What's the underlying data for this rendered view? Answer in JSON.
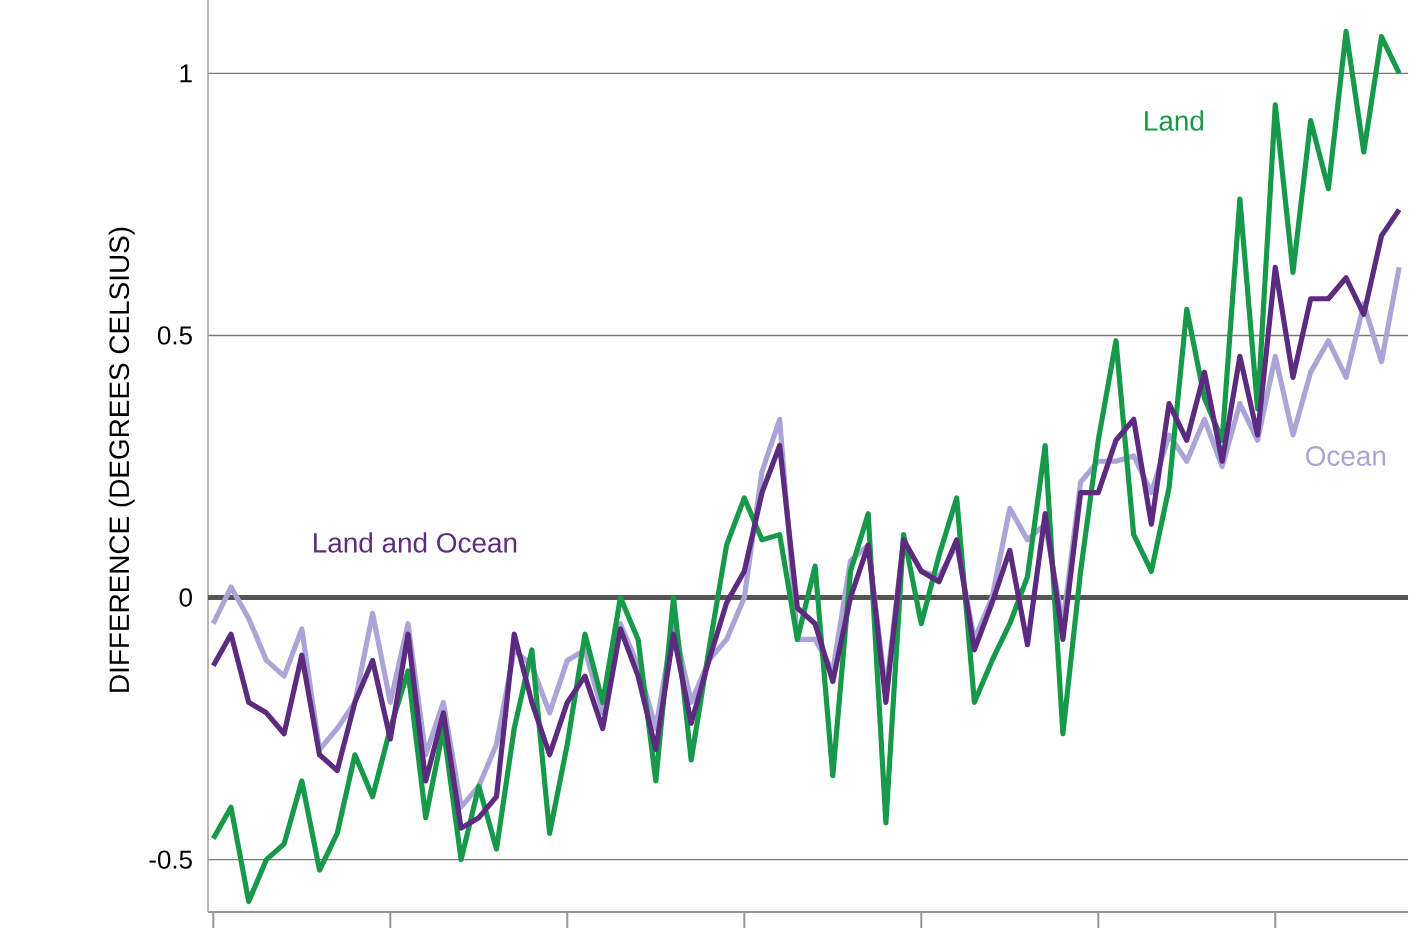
{
  "chart_data": {
    "type": "line",
    "ylabel": "DIFFERENCE (DEGREES CELSIUS)",
    "categories": [
      null,
      null,
      null,
      null,
      null,
      null,
      null,
      null,
      null,
      null,
      null,
      null,
      null,
      null,
      null,
      null,
      null,
      null,
      null,
      null,
      null,
      null,
      null,
      null,
      null,
      null,
      null,
      null,
      null,
      null,
      null,
      null,
      null,
      null,
      null,
      null,
      null,
      null,
      null,
      null,
      null,
      null,
      null,
      null,
      null,
      null,
      null,
      null,
      null,
      null,
      null,
      null,
      null,
      null,
      null,
      null,
      null,
      null,
      null,
      null,
      null,
      null,
      null,
      null,
      null,
      null,
      null,
      null
    ],
    "series": [
      {
        "name": "Ocean",
        "color": "#aaa5d6",
        "values": [
          -0.05,
          0.02,
          -0.04,
          -0.12,
          -0.15,
          -0.06,
          -0.29,
          -0.25,
          -0.2,
          -0.03,
          -0.2,
          -0.05,
          -0.3,
          -0.2,
          -0.4,
          -0.36,
          -0.28,
          -0.1,
          -0.13,
          -0.22,
          -0.12,
          -0.1,
          -0.22,
          -0.05,
          -0.13,
          -0.25,
          -0.05,
          -0.2,
          -0.12,
          -0.08,
          0.0,
          0.24,
          0.34,
          -0.08,
          -0.08,
          -0.14,
          0.07,
          0.1,
          -0.18,
          0.11,
          0.05,
          0.04,
          0.1,
          -0.08,
          0.0,
          0.17,
          0.11,
          0.14,
          -0.05,
          0.22,
          0.26,
          0.26,
          0.27,
          0.2,
          0.31,
          0.26,
          0.34,
          0.25,
          0.37,
          0.3,
          0.46,
          0.31,
          0.43,
          0.49,
          0.42,
          0.56,
          0.45,
          0.63
        ]
      },
      {
        "name": "Land",
        "color": "#17994a",
        "values": [
          -0.46,
          -0.4,
          -0.58,
          -0.5,
          -0.47,
          -0.35,
          -0.52,
          -0.45,
          -0.3,
          -0.38,
          -0.25,
          -0.14,
          -0.42,
          -0.25,
          -0.5,
          -0.36,
          -0.48,
          -0.25,
          -0.1,
          -0.45,
          -0.28,
          -0.07,
          -0.2,
          0.0,
          -0.08,
          -0.35,
          0.0,
          -0.31,
          -0.1,
          0.1,
          0.19,
          0.11,
          0.12,
          -0.08,
          0.06,
          -0.34,
          0.05,
          0.16,
          -0.43,
          0.12,
          -0.05,
          0.08,
          0.19,
          -0.2,
          -0.12,
          -0.05,
          0.04,
          0.29,
          -0.26,
          0.05,
          0.3,
          0.49,
          0.12,
          0.05,
          0.21,
          0.55,
          0.38,
          0.3,
          0.76,
          0.36,
          0.94,
          0.62,
          0.91,
          0.78,
          1.08,
          0.85,
          1.07,
          1.0
        ]
      },
      {
        "name": "Land and Ocean",
        "color": "#5c2a7e",
        "values": [
          -0.13,
          -0.07,
          -0.2,
          -0.22,
          -0.26,
          -0.11,
          -0.3,
          -0.33,
          -0.2,
          -0.12,
          -0.27,
          -0.07,
          -0.35,
          -0.22,
          -0.44,
          -0.42,
          -0.38,
          -0.07,
          -0.2,
          -0.3,
          -0.2,
          -0.15,
          -0.25,
          -0.06,
          -0.15,
          -0.29,
          -0.07,
          -0.24,
          -0.12,
          -0.01,
          0.05,
          0.2,
          0.29,
          -0.02,
          -0.05,
          -0.16,
          0.0,
          0.1,
          -0.2,
          0.11,
          0.05,
          0.03,
          0.11,
          -0.1,
          -0.01,
          0.09,
          -0.09,
          0.16,
          -0.08,
          0.2,
          0.2,
          0.3,
          0.34,
          0.14,
          0.37,
          0.3,
          0.43,
          0.26,
          0.46,
          0.31,
          0.63,
          0.42,
          0.57,
          0.57,
          0.61,
          0.54,
          0.69,
          0.74
        ]
      }
    ],
    "ylim": [
      -0.6,
      1.14
    ],
    "yticks": [
      -0.5,
      0,
      0.5,
      1
    ],
    "grid": "y",
    "ref_lines": [
      {
        "axis": "y",
        "value": 0,
        "color": "#555555"
      }
    ]
  }
}
